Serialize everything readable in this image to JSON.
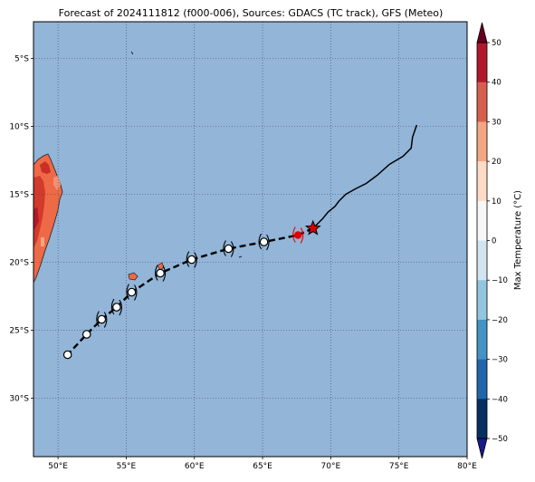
{
  "title": "Forecast of 2024111812 (f000-006), Sources: GDACS (TC track), GFS (Meteo)",
  "map": {
    "lon_range": [
      48.2,
      80
    ],
    "lat_range": [
      -34.3,
      -2.3
    ],
    "lon_ticks": [
      50,
      55,
      60,
      65,
      70,
      75,
      80
    ],
    "lon_tick_labels": [
      "50°E",
      "55°E",
      "60°E",
      "65°E",
      "70°E",
      "75°E",
      "80°E"
    ],
    "lat_ticks": [
      -5,
      -10,
      -15,
      -20,
      -25,
      -30
    ],
    "lat_tick_labels": [
      "5°S",
      "10°S",
      "15°S",
      "20°S",
      "25°S",
      "30°S"
    ],
    "ocean_color": "#92b5d8",
    "grid": "dotted",
    "observed_track": [
      [
        76.3,
        -9.9
      ],
      [
        76.0,
        -10.8
      ],
      [
        75.9,
        -11.6
      ],
      [
        75.3,
        -12.2
      ],
      [
        74.3,
        -12.8
      ],
      [
        73.4,
        -13.6
      ],
      [
        72.6,
        -14.2
      ],
      [
        71.8,
        -14.6
      ],
      [
        71.1,
        -15.0
      ],
      [
        70.6,
        -15.5
      ],
      [
        70.3,
        -15.9
      ],
      [
        69.8,
        -16.3
      ],
      [
        69.4,
        -16.8
      ],
      [
        68.9,
        -17.3
      ],
      [
        68.7,
        -17.5
      ]
    ],
    "forecast_track": [
      [
        68.7,
        -17.5
      ],
      [
        67.6,
        -18.0
      ],
      [
        65.1,
        -18.5
      ],
      [
        62.5,
        -19.0
      ],
      [
        59.8,
        -19.8
      ],
      [
        57.5,
        -20.8
      ],
      [
        55.4,
        -22.2
      ],
      [
        54.3,
        -23.3
      ],
      [
        53.2,
        -24.2
      ],
      [
        52.1,
        -25.3
      ],
      [
        50.7,
        -26.8
      ]
    ],
    "current_position": [
      68.7,
      -17.5
    ],
    "forecast_points": [
      [
        67.6,
        -18.0
      ],
      [
        65.1,
        -18.5
      ],
      [
        62.5,
        -19.0
      ],
      [
        59.8,
        -19.8
      ],
      [
        57.5,
        -20.8
      ],
      [
        55.4,
        -22.2
      ],
      [
        54.3,
        -23.3
      ],
      [
        53.2,
        -24.2
      ],
      [
        52.1,
        -25.3
      ],
      [
        50.7,
        -26.8
      ]
    ]
  },
  "colorbar": {
    "label": "Max Temperature (°C)",
    "min": -50,
    "max": 50,
    "ticks": [
      50,
      40,
      30,
      20,
      10,
      0,
      -10,
      -20,
      -30,
      -40,
      -50
    ],
    "tick_labels": [
      "50",
      "40",
      "30",
      "20",
      "10",
      "0",
      "−10",
      "−20",
      "−30",
      "−40",
      "−50"
    ],
    "colors": [
      "#67001f",
      "#b2182b",
      "#d6604d",
      "#f4a582",
      "#fddbc7",
      "#f7f7f7",
      "#d1e5f0",
      "#92c5de",
      "#4393c3",
      "#2166ac",
      "#053061",
      "#1a1a8a"
    ]
  }
}
